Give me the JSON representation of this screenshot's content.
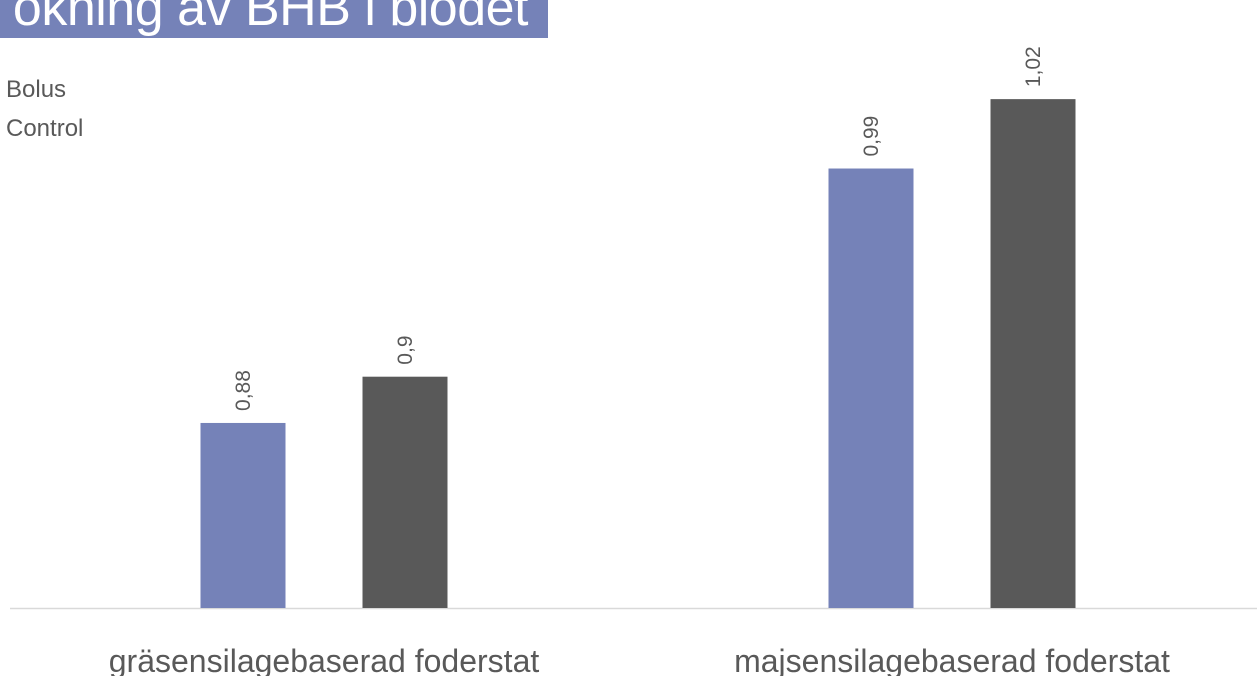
{
  "title": "ökning av BHB i blodet",
  "colors": {
    "banner": "#7582b8",
    "bolus": "#7582b8",
    "control": "#595959",
    "axis": "#d9d9d9",
    "label": "#595959"
  },
  "chart_data": {
    "type": "bar",
    "categories": [
      "gräsensilagebaserad foderstat",
      "majsensilagebaserad foderstat"
    ],
    "series": [
      {
        "name": "Bolus",
        "values": [
          0.88,
          0.99
        ],
        "labels": [
          "0,88",
          "0,99"
        ]
      },
      {
        "name": "Control",
        "values": [
          0.9,
          1.02
        ],
        "labels": [
          "0,9",
          "1,02"
        ]
      }
    ],
    "ylim": [
      0.8,
      1.03
    ],
    "grid": false,
    "legend": "top-left",
    "data_labels": "rotated"
  }
}
